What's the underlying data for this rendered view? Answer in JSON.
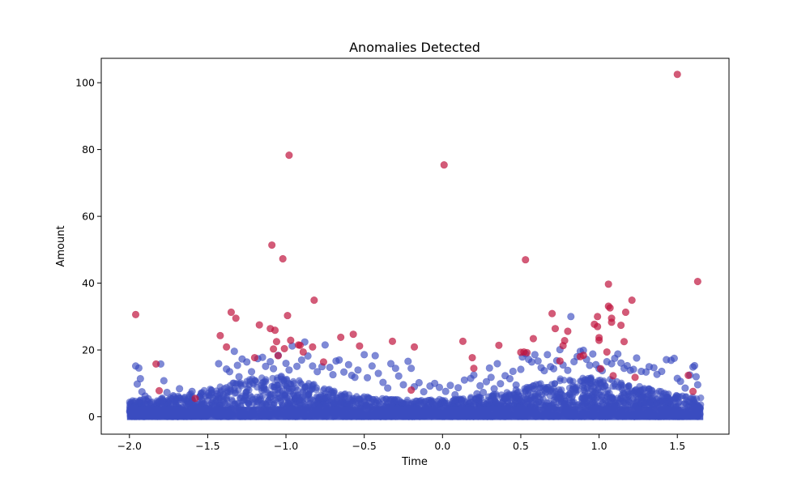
{
  "chart_data": {
    "type": "scatter",
    "title": "Anomalies Detected",
    "xlabel": "Time",
    "ylabel": "Amount",
    "xlim": [
      -2.18,
      1.83
    ],
    "ylim": [
      -5.2,
      107.3
    ],
    "xticks": [
      -2.0,
      -1.5,
      -1.0,
      -0.5,
      0.0,
      0.5,
      1.0,
      1.5
    ],
    "xtick_labels": [
      "−2.0",
      "−1.5",
      "−1.0",
      "−0.5",
      "0.0",
      "0.5",
      "1.0",
      "1.5"
    ],
    "yticks": [
      0,
      20,
      40,
      60,
      80,
      100
    ],
    "ytick_labels": [
      "0",
      "20",
      "40",
      "60",
      "80",
      "100"
    ],
    "grid": false,
    "colors": {
      "normal": "#3b4cc0",
      "anomaly": "#c0153f"
    },
    "series": [
      {
        "points": [
          [
            -1.96,
            15.2
          ],
          [
            -1.94,
            14.6
          ],
          [
            -1.93,
            11.4
          ],
          [
            -1.95,
            9.8
          ],
          [
            -1.92,
            7.5
          ],
          [
            -1.9,
            6.2
          ],
          [
            -1.88,
            5.4
          ],
          [
            -1.8,
            15.8
          ],
          [
            -1.78,
            10.8
          ],
          [
            -1.76,
            7.3
          ],
          [
            -1.72,
            6.3
          ],
          [
            -1.68,
            8.4
          ],
          [
            -1.6,
            7.6
          ],
          [
            -1.55,
            5.9
          ],
          [
            -1.5,
            4.8
          ],
          [
            -1.44,
            6.9
          ],
          [
            -1.43,
            15.9
          ],
          [
            -1.38,
            14.3
          ],
          [
            -1.36,
            13.5
          ],
          [
            -1.33,
            19.6
          ],
          [
            -1.31,
            15.4
          ],
          [
            -1.3,
            12.0
          ],
          [
            -1.28,
            17.3
          ],
          [
            -1.25,
            16.4
          ],
          [
            -1.22,
            13.5
          ],
          [
            -1.18,
            17.4
          ],
          [
            -1.15,
            17.8
          ],
          [
            -1.13,
            15.1
          ],
          [
            -1.1,
            16.5
          ],
          [
            -1.08,
            14.4
          ],
          [
            -1.05,
            18.4
          ],
          [
            -1.03,
            12.1
          ],
          [
            -1.0,
            16.0
          ],
          [
            -0.98,
            14.0
          ],
          [
            -0.96,
            21.2
          ],
          [
            -0.93,
            15.1
          ],
          [
            -0.9,
            17.0
          ],
          [
            -0.88,
            22.4
          ],
          [
            -0.86,
            18.2
          ],
          [
            -0.83,
            15.2
          ],
          [
            -0.8,
            13.5
          ],
          [
            -0.77,
            15.0
          ],
          [
            -0.75,
            21.5
          ],
          [
            -0.72,
            14.8
          ],
          [
            -0.7,
            12.6
          ],
          [
            -0.68,
            16.7
          ],
          [
            -0.66,
            17.0
          ],
          [
            -0.63,
            13.4
          ],
          [
            -0.6,
            15.6
          ],
          [
            -0.58,
            12.4
          ],
          [
            -0.56,
            11.8
          ],
          [
            -0.54,
            14.0
          ],
          [
            -0.5,
            18.6
          ],
          [
            -0.48,
            11.7
          ],
          [
            -0.45,
            15.2
          ],
          [
            -0.43,
            18.3
          ],
          [
            -0.41,
            13.0
          ],
          [
            -0.38,
            10.3
          ],
          [
            -0.35,
            8.6
          ],
          [
            -0.33,
            15.9
          ],
          [
            -0.3,
            14.5
          ],
          [
            -0.28,
            12.2
          ],
          [
            -0.25,
            9.6
          ],
          [
            -0.22,
            16.6
          ],
          [
            -0.2,
            14.5
          ],
          [
            -0.18,
            9.0
          ],
          [
            -0.15,
            10.2
          ],
          [
            -0.12,
            7.5
          ],
          [
            -0.08,
            9.2
          ],
          [
            -0.05,
            10.0
          ],
          [
            -0.02,
            8.8
          ],
          [
            0.02,
            7.6
          ],
          [
            0.05,
            9.4
          ],
          [
            0.08,
            6.6
          ],
          [
            0.1,
            8.7
          ],
          [
            0.14,
            11.0
          ],
          [
            0.18,
            11.5
          ],
          [
            0.2,
            12.5
          ],
          [
            0.22,
            6.9
          ],
          [
            0.24,
            9.3
          ],
          [
            0.26,
            7.3
          ],
          [
            0.28,
            10.5
          ],
          [
            0.3,
            14.6
          ],
          [
            0.31,
            11.8
          ],
          [
            0.33,
            8.4
          ],
          [
            0.35,
            15.9
          ],
          [
            0.37,
            9.9
          ],
          [
            0.4,
            12.3
          ],
          [
            0.43,
            11.4
          ],
          [
            0.45,
            13.6
          ],
          [
            0.47,
            9.5
          ],
          [
            0.5,
            14.2
          ],
          [
            0.51,
            17.9
          ],
          [
            0.53,
            18.9
          ],
          [
            0.55,
            17.2
          ],
          [
            0.57,
            16.4
          ],
          [
            0.59,
            18.6
          ],
          [
            0.61,
            16.7
          ],
          [
            0.63,
            14.7
          ],
          [
            0.65,
            13.8
          ],
          [
            0.67,
            18.6
          ],
          [
            0.69,
            15.0
          ],
          [
            0.71,
            14.4
          ],
          [
            0.73,
            16.8
          ],
          [
            0.75,
            20.1
          ],
          [
            0.77,
            15.5
          ],
          [
            0.8,
            13.9
          ],
          [
            0.82,
            30.0
          ],
          [
            0.84,
            16.5
          ],
          [
            0.86,
            18.0
          ],
          [
            0.88,
            19.6
          ],
          [
            0.9,
            19.9
          ],
          [
            0.92,
            17.2
          ],
          [
            0.94,
            15.4
          ],
          [
            0.96,
            18.8
          ],
          [
            0.98,
            15.6
          ],
          [
            1.0,
            14.4
          ],
          [
            1.02,
            13.8
          ],
          [
            1.05,
            16.5
          ],
          [
            1.08,
            15.9
          ],
          [
            1.1,
            17.5
          ],
          [
            1.12,
            18.8
          ],
          [
            1.14,
            16.1
          ],
          [
            1.16,
            14.5
          ],
          [
            1.18,
            15.3
          ],
          [
            1.2,
            13.9
          ],
          [
            1.22,
            14.2
          ],
          [
            1.24,
            17.6
          ],
          [
            1.27,
            13.6
          ],
          [
            1.3,
            13.4
          ],
          [
            1.32,
            15.0
          ],
          [
            1.35,
            14.7
          ],
          [
            1.37,
            12.7
          ],
          [
            1.4,
            13.6
          ],
          [
            1.43,
            17.1
          ],
          [
            1.46,
            16.9
          ],
          [
            1.48,
            17.5
          ],
          [
            1.5,
            11.5
          ],
          [
            1.52,
            10.6
          ],
          [
            1.55,
            8.6
          ],
          [
            1.58,
            12.5
          ],
          [
            1.6,
            14.9
          ],
          [
            1.61,
            15.3
          ],
          [
            1.62,
            12.0
          ],
          [
            1.63,
            9.6
          ]
        ]
      },
      {
        "points": [
          [
            -1.96,
            30.6
          ],
          [
            -1.83,
            15.8
          ],
          [
            -1.81,
            7.8
          ],
          [
            -1.58,
            5.5
          ],
          [
            -1.42,
            24.3
          ],
          [
            -1.38,
            20.9
          ],
          [
            -1.35,
            31.3
          ],
          [
            -1.32,
            29.5
          ],
          [
            -1.17,
            27.5
          ],
          [
            -1.2,
            17.7
          ],
          [
            -1.1,
            26.4
          ],
          [
            -1.09,
            51.4
          ],
          [
            -1.08,
            20.3
          ],
          [
            -1.07,
            25.9
          ],
          [
            -1.06,
            22.5
          ],
          [
            -1.05,
            18.3
          ],
          [
            -1.02,
            47.3
          ],
          [
            -1.01,
            20.4
          ],
          [
            -0.99,
            30.3
          ],
          [
            -0.98,
            78.3
          ],
          [
            -0.97,
            22.9
          ],
          [
            -0.92,
            21.5
          ],
          [
            -0.91,
            21.4
          ],
          [
            -0.89,
            19.4
          ],
          [
            -0.83,
            20.9
          ],
          [
            -0.82,
            34.9
          ],
          [
            -0.76,
            16.4
          ],
          [
            -0.65,
            23.8
          ],
          [
            -0.57,
            24.7
          ],
          [
            -0.53,
            21.2
          ],
          [
            -0.32,
            22.6
          ],
          [
            -0.18,
            20.9
          ],
          [
            -0.2,
            8.0
          ],
          [
            0.01,
            75.4
          ],
          [
            0.13,
            22.6
          ],
          [
            0.19,
            17.7
          ],
          [
            0.2,
            14.5
          ],
          [
            0.36,
            21.4
          ],
          [
            0.5,
            19.3
          ],
          [
            0.52,
            19.4
          ],
          [
            0.54,
            19.2
          ],
          [
            0.53,
            47.0
          ],
          [
            0.58,
            23.4
          ],
          [
            0.7,
            30.9
          ],
          [
            0.72,
            26.4
          ],
          [
            0.75,
            16.7
          ],
          [
            0.77,
            21.3
          ],
          [
            0.78,
            22.8
          ],
          [
            0.8,
            25.6
          ],
          [
            0.88,
            18.0
          ],
          [
            0.9,
            18.4
          ],
          [
            0.97,
            27.7
          ],
          [
            0.99,
            30.0
          ],
          [
            0.99,
            27.0
          ],
          [
            1.0,
            22.9
          ],
          [
            1.0,
            23.7
          ],
          [
            1.01,
            14.4
          ],
          [
            1.05,
            19.4
          ],
          [
            1.06,
            33.1
          ],
          [
            1.06,
            39.7
          ],
          [
            1.07,
            32.6
          ],
          [
            1.08,
            28.3
          ],
          [
            1.08,
            29.5
          ],
          [
            1.09,
            12.3
          ],
          [
            1.14,
            27.4
          ],
          [
            1.16,
            22.5
          ],
          [
            1.17,
            31.3
          ],
          [
            1.21,
            34.9
          ],
          [
            1.23,
            11.8
          ],
          [
            1.5,
            102.5
          ],
          [
            1.57,
            12.4
          ],
          [
            1.6,
            7.6
          ],
          [
            1.63,
            40.5
          ]
        ]
      }
    ]
  }
}
